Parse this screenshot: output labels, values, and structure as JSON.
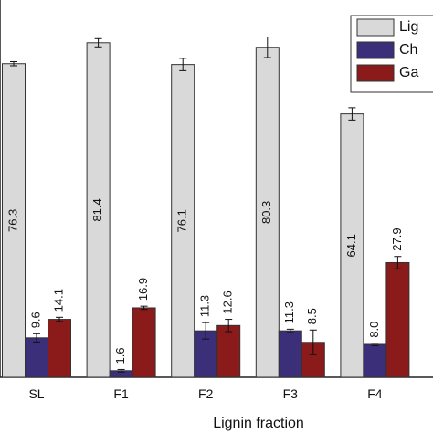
{
  "chart_data": {
    "type": "bar",
    "x_label": "Lignin fraction",
    "categories": [
      "SL",
      "F1",
      "F2",
      "F3",
      "F4"
    ],
    "series": [
      {
        "name": "Lig",
        "color": "#d9d9d9",
        "values": [
          76.3,
          81.4,
          76.1,
          80.3,
          64.1
        ],
        "value_labels": [
          "76.3",
          "81.4",
          "76.1",
          "80.3",
          "64.1"
        ],
        "errors": [
          0.5,
          1,
          1.5,
          2.5,
          1.5
        ]
      },
      {
        "name": "Ch",
        "color": "#3b2f7a",
        "values": [
          9.6,
          1.6,
          11.3,
          11.3,
          8
        ],
        "value_labels": [
          "9.6",
          "1.6",
          "11.3",
          "11.3",
          "8.0"
        ],
        "errors": [
          1,
          0.3,
          2,
          0.4,
          0.3
        ]
      },
      {
        "name": "Ga",
        "color": "#8b1a1a",
        "values": [
          14.1,
          16.9,
          12.6,
          8.5,
          27.9
        ],
        "value_labels": [
          "14.1",
          "16.9",
          "12.6",
          "8.5",
          "27.9"
        ],
        "errors": [
          0.5,
          0.4,
          1.5,
          3,
          1.5
        ]
      }
    ],
    "ylim": [
      0,
      91.8
    ]
  }
}
